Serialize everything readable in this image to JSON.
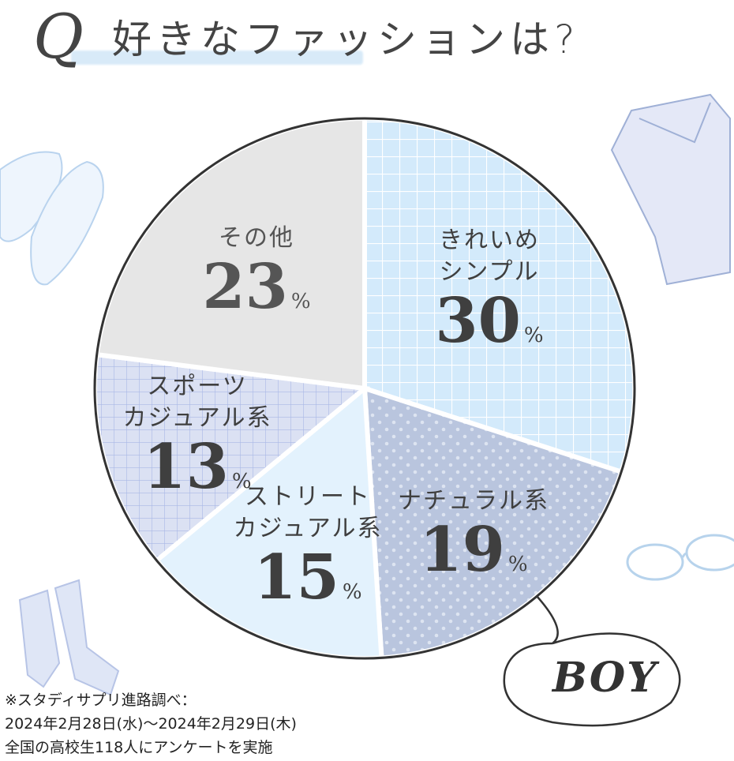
{
  "title": {
    "q_mark": "Q",
    "text": "好きなファッションは?"
  },
  "chart_data": {
    "type": "pie",
    "title": "好きなファッションは?",
    "start": "12 o'clock, clockwise",
    "slices": [
      {
        "label_lines": [
          "きれいめ",
          "シンプル"
        ],
        "value": 30,
        "color": "#d3eafb",
        "pattern": "grid"
      },
      {
        "label_lines": [
          "ナチュラル系"
        ],
        "value": 19,
        "color": "#b9c5de",
        "pattern": "dots"
      },
      {
        "label_lines": [
          "ストリート",
          "カジュアル系"
        ],
        "value": 15,
        "color": "#e3f2fd",
        "pattern": "plain"
      },
      {
        "label_lines": [
          "スポーツ",
          "カジュアル系"
        ],
        "value": 13,
        "color": "#dbe1f3",
        "pattern": "grid-blue"
      },
      {
        "label_lines": [
          "その他"
        ],
        "value": 23,
        "color": "#e6e6e6",
        "pattern": "plain"
      }
    ],
    "unit": "%"
  },
  "badge": "BOY",
  "footnote": [
    "※スタディサプリ進路調べ：",
    "2024年2月28日(水)～2024年2月29日(木)",
    "全国の高校生118人にアンケートを実施"
  ]
}
